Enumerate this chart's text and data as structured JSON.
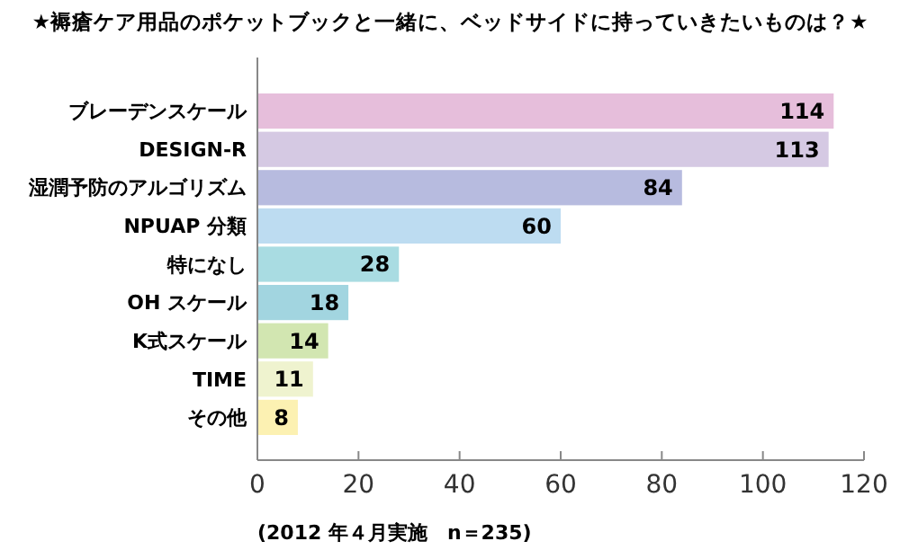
{
  "chart_data": {
    "type": "bar",
    "orientation": "horizontal",
    "title": "★褥瘡ケア用品のポケットブックと一緒に、ベッドサイドに持っていきたいものは？★",
    "categories": [
      "ブレーデンスケール",
      "DESIGN-R",
      "湿潤予防のアルゴリズム",
      "NPUAP 分類",
      "特になし",
      "OH スケール",
      "K式スケール",
      "TIME",
      "その他"
    ],
    "values": [
      114,
      113,
      84,
      60,
      28,
      18,
      14,
      11,
      8
    ],
    "colors": [
      "#e6bedb",
      "#d5c9e3",
      "#b7bbdf",
      "#bddcf1",
      "#a9dce2",
      "#a2d5e0",
      "#d2e6b1",
      "#eff3cf",
      "#fcf1b2"
    ],
    "xlim": [
      0,
      120
    ],
    "xticks": [
      0,
      20,
      40,
      60,
      80,
      100,
      120
    ],
    "grid": false,
    "data_labels": true,
    "annotations": [
      "(2012 年４月実施　n＝235)"
    ]
  }
}
